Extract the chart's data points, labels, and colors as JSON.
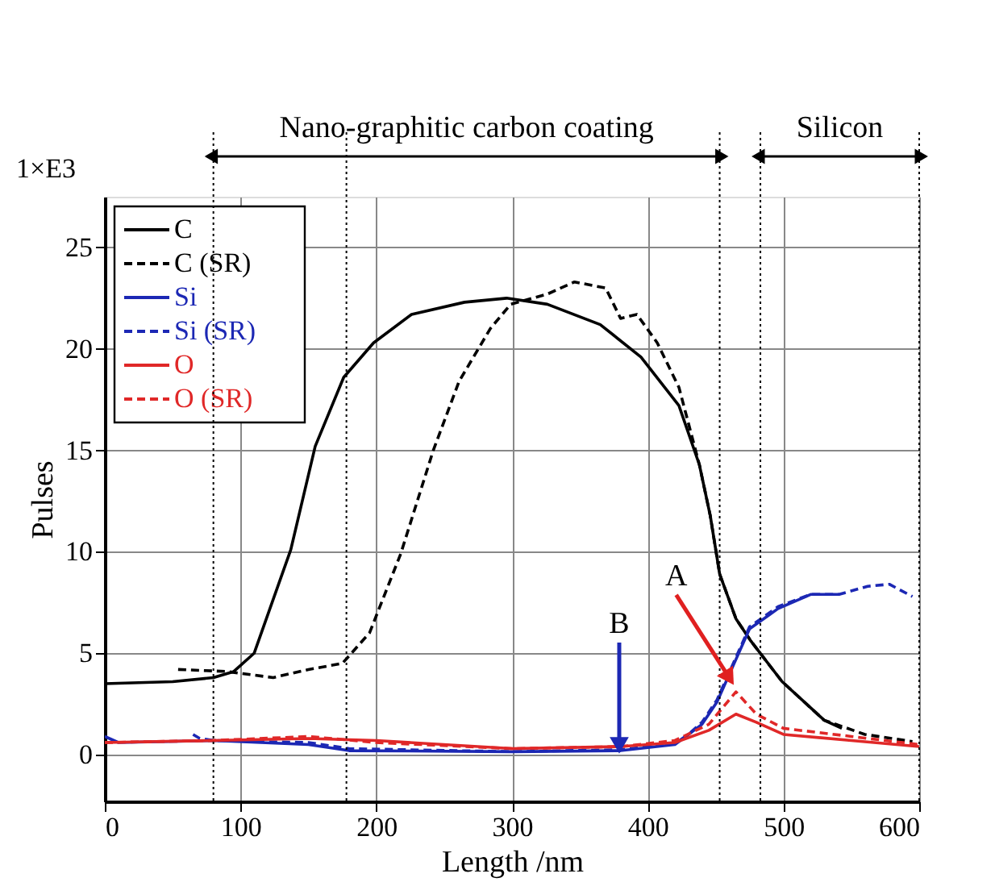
{
  "chart_data": {
    "type": "line",
    "xlabel": "Length /nm",
    "ylabel": "Pulses",
    "xlim": [
      0,
      600
    ],
    "ylim": [
      -2.3,
      27.5
    ],
    "xticks": [
      0,
      100,
      200,
      300,
      400,
      500,
      600
    ],
    "yticks": [
      0,
      5,
      10,
      15,
      20,
      25
    ],
    "grid": true,
    "legend": "top left",
    "series": [
      {
        "name": "C",
        "color": "#000000",
        "line_style": "solid",
        "x": [
          0,
          50,
          80,
          95,
          110,
          137,
          155,
          176,
          198,
          226,
          265,
          296,
          326,
          365,
          395,
          423,
          438,
          446,
          453,
          465,
          476,
          499,
          530,
          543
        ],
        "values": [
          3.5,
          3.6,
          3.8,
          4.1,
          5.0,
          10.1,
          15.2,
          18.6,
          20.3,
          21.7,
          22.3,
          22.5,
          22.2,
          21.2,
          19.6,
          17.2,
          14.3,
          11.8,
          8.9,
          6.7,
          5.6,
          3.6,
          1.7,
          1.3
        ]
      },
      {
        "name": "C (SR)",
        "color": "#000000",
        "line_style": "dashed",
        "x": [
          54,
          90,
          124,
          150,
          175,
          195,
          218,
          242,
          261,
          284,
          299,
          326,
          346,
          369,
          380,
          392,
          407,
          423,
          438,
          446,
          453,
          465,
          476,
          499,
          530,
          560,
          595
        ],
        "values": [
          4.2,
          4.1,
          3.8,
          4.2,
          4.5,
          6.0,
          9.9,
          15.0,
          18.4,
          21.0,
          22.2,
          22.7,
          23.3,
          23.0,
          21.5,
          21.7,
          20.3,
          18.1,
          14.3,
          11.8,
          8.9,
          6.7,
          5.6,
          3.6,
          1.7,
          1.0,
          0.65
        ]
      },
      {
        "name": "Si",
        "color": "#1c28b4",
        "line_style": "solid",
        "x": [
          0,
          10,
          80,
          150,
          180,
          300,
          380,
          420,
          430,
          440,
          451,
          463,
          475,
          496,
          520,
          541
        ],
        "values": [
          0.9,
          0.6,
          0.7,
          0.5,
          0.2,
          0.15,
          0.2,
          0.5,
          1.0,
          1.5,
          2.6,
          4.4,
          6.2,
          7.2,
          7.9,
          7.9
        ]
      },
      {
        "name": "Si (SR)",
        "color": "#1c28b4",
        "line_style": "dashed",
        "x": [
          65,
          70,
          80,
          150,
          180,
          300,
          380,
          420,
          430,
          440,
          451,
          463,
          475,
          496,
          520,
          541,
          562,
          578,
          595
        ],
        "values": [
          1.0,
          0.8,
          0.7,
          0.6,
          0.3,
          0.15,
          0.25,
          0.55,
          1.0,
          1.6,
          2.7,
          4.5,
          6.3,
          7.3,
          7.9,
          7.9,
          8.3,
          8.4,
          7.8
        ]
      },
      {
        "name": "O",
        "color": "#e02828",
        "line_style": "solid",
        "x": [
          0,
          80,
          150,
          200,
          300,
          380,
          420,
          445,
          465,
          480,
          500,
          550,
          600
        ],
        "values": [
          0.6,
          0.7,
          0.8,
          0.7,
          0.3,
          0.4,
          0.6,
          1.2,
          2.0,
          1.6,
          1.0,
          0.7,
          0.4
        ]
      },
      {
        "name": "O (SR)",
        "color": "#e02828",
        "line_style": "dashed",
        "x": [
          0,
          80,
          150,
          200,
          300,
          380,
          420,
          445,
          465,
          480,
          500,
          550,
          600
        ],
        "values": [
          0.6,
          0.7,
          0.9,
          0.6,
          0.3,
          0.4,
          0.7,
          1.5,
          3.1,
          2.0,
          1.3,
          0.9,
          0.5
        ]
      }
    ],
    "ref_lines": [
      {
        "axis": "x",
        "value": 80,
        "label": null,
        "line_style": "dotted"
      },
      {
        "axis": "x",
        "value": 178,
        "label": null,
        "line_style": "dotted"
      },
      {
        "axis": "x",
        "value": 453,
        "label": null,
        "line_style": "dotted"
      },
      {
        "axis": "x",
        "value": 483,
        "label": null,
        "line_style": "dotted"
      },
      {
        "axis": "x",
        "value": 600,
        "label": null,
        "line_style": "dotted"
      }
    ],
    "annotations": [
      "1×E3",
      "Nano-graphitic carbon coating",
      "Silicon",
      {
        "text": "A",
        "x": 459,
        "y": 3.9
      },
      {
        "text": "B",
        "x": 379,
        "y": 0.6
      }
    ]
  }
}
